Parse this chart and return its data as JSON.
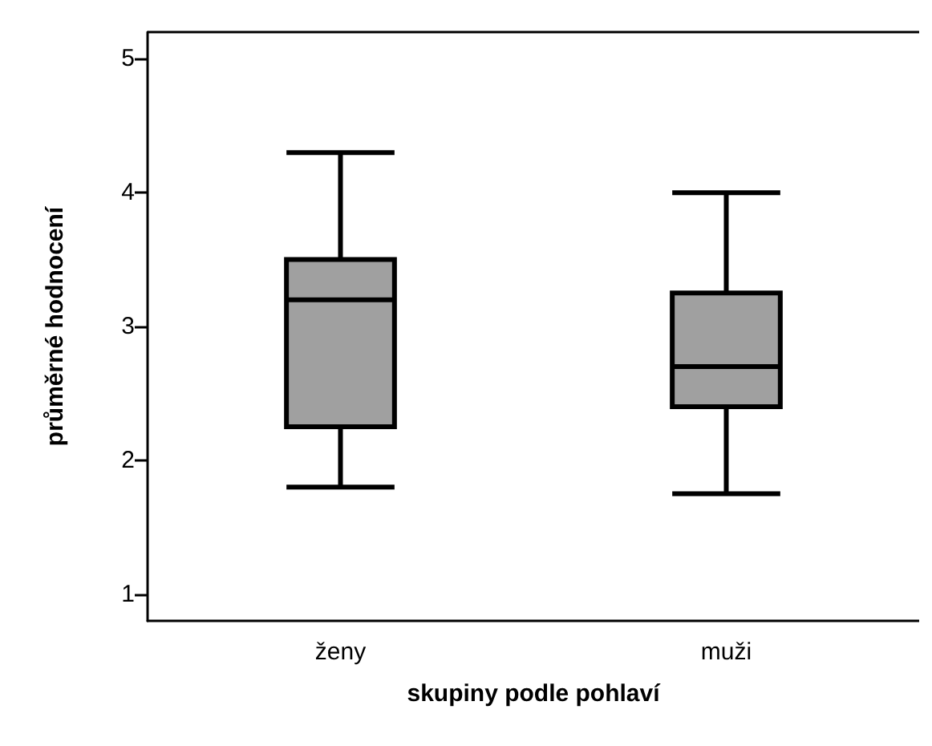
{
  "chart_data": {
    "type": "box",
    "xlabel": "skupiny podle pohlaví",
    "ylabel": "průměrné hodnocení",
    "categories": [
      "ženy",
      "muži"
    ],
    "boxes": [
      {
        "low": 1.8,
        "q1": 2.25,
        "median": 3.2,
        "q3": 3.5,
        "high": 4.3
      },
      {
        "low": 1.75,
        "q1": 2.4,
        "median": 2.7,
        "q3": 3.25,
        "high": 4.0
      }
    ],
    "color": "#a0a0a0",
    "ylim": [
      0.8,
      5.2
    ],
    "yticks": [
      1,
      2,
      3,
      4,
      5
    ],
    "grid": false
  }
}
